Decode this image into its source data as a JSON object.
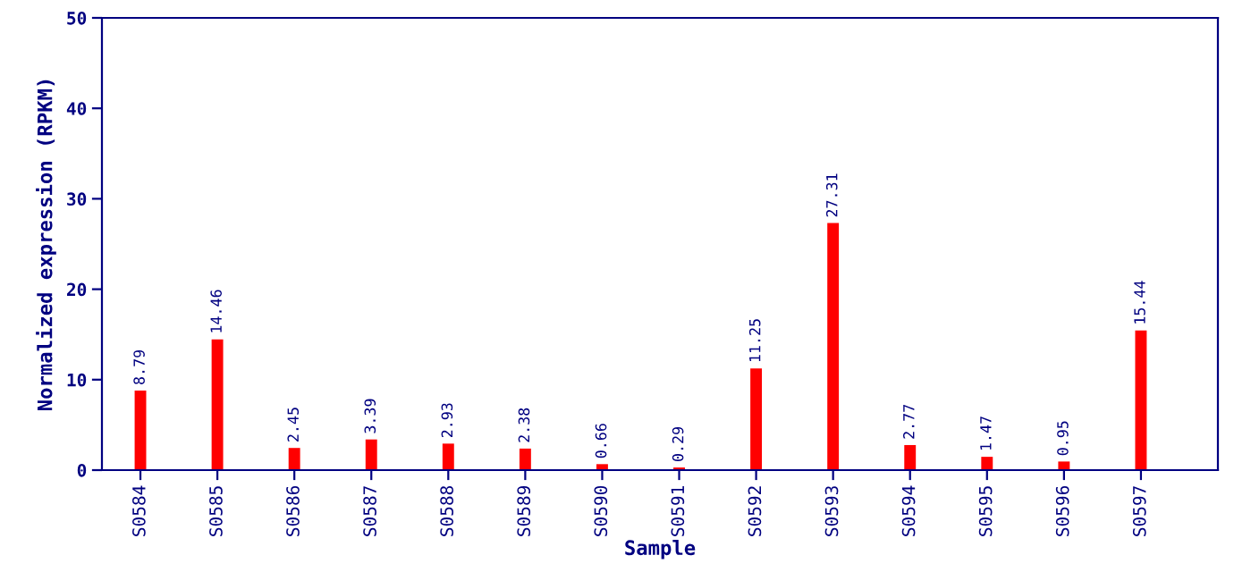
{
  "chart_data": {
    "type": "bar",
    "xlabel": "Sample",
    "ylabel": "Normalized expression (RPKM)",
    "categories": [
      "S0584",
      "S0585",
      "S0586",
      "S0587",
      "S0588",
      "S0589",
      "S0590",
      "S0591",
      "S0592",
      "S0593",
      "S0594",
      "S0595",
      "S0596",
      "S0597"
    ],
    "values": [
      8.79,
      14.46,
      2.45,
      3.39,
      2.93,
      2.38,
      0.66,
      0.29,
      11.25,
      27.31,
      2.77,
      1.47,
      0.95,
      15.44
    ],
    "color": "#ff0000",
    "ylim": [
      0,
      50
    ],
    "yticks": [
      0,
      10,
      20,
      30,
      40,
      50
    ],
    "grid": false,
    "data_labels": true
  }
}
